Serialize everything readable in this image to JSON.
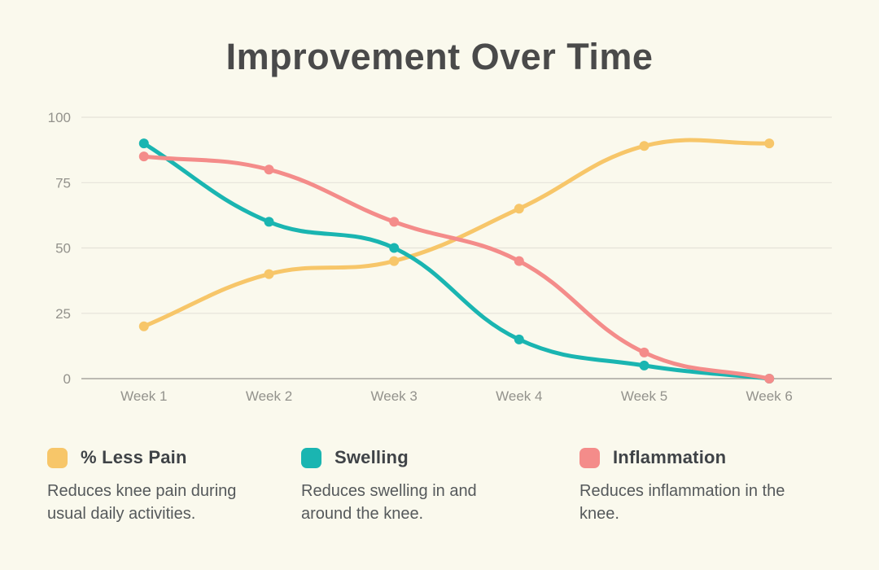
{
  "page": {
    "title": "Improvement Over Time",
    "background_color": "#FAF9ED",
    "title_color": "#4A4A4A"
  },
  "chart_data": {
    "type": "line",
    "title": "Improvement Over Time",
    "categories": [
      "Week 1",
      "Week 2",
      "Week 3",
      "Week 4",
      "Week 5",
      "Week 6"
    ],
    "series": [
      {
        "name": "% Less Pain",
        "color": "#F7C669",
        "values": [
          20,
          40,
          45,
          65,
          89,
          90
        ]
      },
      {
        "name": "Swelling",
        "color": "#1AB5B1",
        "values": [
          90,
          60,
          50,
          15,
          5,
          0
        ]
      },
      {
        "name": "Inflammation",
        "color": "#F48C8A",
        "values": [
          85,
          80,
          60,
          45,
          10,
          0
        ]
      }
    ],
    "xlabel": "",
    "ylabel": "",
    "ylim": [
      0,
      100
    ],
    "yticks": [
      0,
      25,
      50,
      75,
      100
    ],
    "grid": true,
    "gridline_color": "#E5E3D9",
    "axis_line_color": "#A8A69E",
    "tick_label_color": "#93928C",
    "curve_tension": 0.4,
    "line_width": 5,
    "point_radius": 6,
    "legend_position": "bottom"
  },
  "legend": {
    "items": [
      {
        "label": "% Less Pain",
        "color": "#F7C669",
        "description": "Reduces knee pain during usual daily activities."
      },
      {
        "label": "Swelling",
        "color": "#1AB5B1",
        "description": "Reduces swelling in and around the knee."
      },
      {
        "label": "Inflammation",
        "color": "#F48C8A",
        "description": "Reduces inflammation in the knee."
      }
    ]
  }
}
